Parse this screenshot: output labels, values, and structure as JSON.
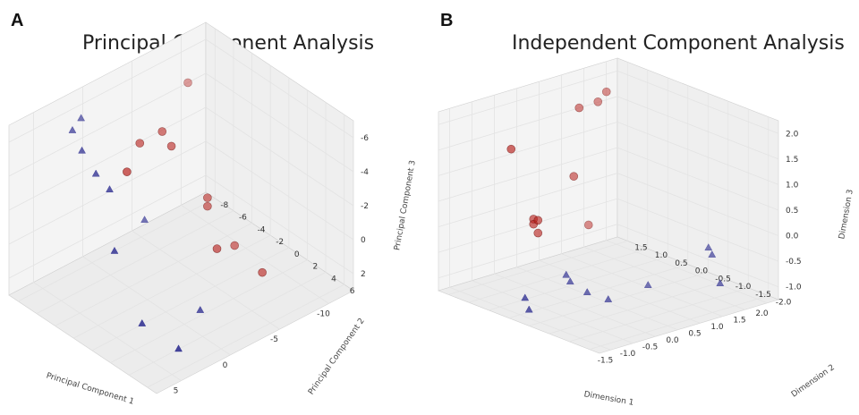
{
  "panels": [
    {
      "letter": "A",
      "title": "Principal Component Analysis"
    },
    {
      "letter": "B",
      "title": "Independent Component Analysis"
    }
  ],
  "colors": {
    "triangle": "#2b2b8f",
    "circle": "#b8201c",
    "grid": "#e3e3e3",
    "pane": "#f4f4f4"
  },
  "chart_data": [
    {
      "type": "scatter",
      "title": "Principal Component Analysis",
      "xlabel": "Principal Component 1",
      "ylabel": "Principal Component 2",
      "zlabel": "Principal Component 3",
      "xticks": [
        "5",
        "0",
        "-5",
        "-10"
      ],
      "yticks": [
        "6",
        "4",
        "2",
        "0",
        "-2",
        "-4",
        "-6",
        "-8"
      ],
      "zticks": [
        "2",
        "0",
        "-2",
        "-4",
        "-6"
      ],
      "xlim": [
        8,
        -14
      ],
      "ylim": [
        7,
        -9
      ],
      "zlim": [
        -6.5,
        3.5
      ],
      "grid": true,
      "series": [
        {
          "marker": "triangle",
          "points": [
            {
              "x": 6.0,
              "y": 0.5,
              "z": -1.0
            },
            {
              "x": 5.0,
              "y": -1.0,
              "z": 1.8
            },
            {
              "x": 5.0,
              "y": -4.0,
              "z": 3.0
            },
            {
              "x": 5.5,
              "y": -2.0,
              "z": 2.5
            },
            {
              "x": 4.0,
              "y": -6.0,
              "z": 3.2
            },
            {
              "x": 2.0,
              "y": -7.0,
              "z": 3.0
            },
            {
              "x": -2.0,
              "y": -4.0,
              "z": -3.0
            },
            {
              "x": 5.5,
              "y": 3.0,
              "z": -4.5
            },
            {
              "x": -1.0,
              "y": 3.0,
              "z": -5.5
            },
            {
              "x": 4.0,
              "y": 5.5,
              "z": -5.5
            }
          ]
        },
        {
          "marker": "circle",
          "points": [
            {
              "x": 1.0,
              "y": -3.0,
              "z": 1.0
            },
            {
              "x": -2.5,
              "y": -5.0,
              "z": 1.0
            },
            {
              "x": -5.0,
              "y": -5.0,
              "z": 1.0
            },
            {
              "x": -5.0,
              "y": -4.0,
              "z": 0.5
            },
            {
              "x": -12.0,
              "y": -9.0,
              "z": 0.5
            },
            {
              "x": -8.0,
              "y": -3.0,
              "z": -3.0
            },
            {
              "x": -8.0,
              "y": -3.0,
              "z": -3.5
            },
            {
              "x": -7.0,
              "y": -1.0,
              "z": -5.0
            },
            {
              "x": -10.0,
              "y": -2.0,
              "z": -6.0
            },
            {
              "x": -10.0,
              "y": 1.0,
              "z": -6.5
            }
          ]
        }
      ]
    },
    {
      "type": "scatter",
      "title": "Independent Component Analysis",
      "xlabel": "Dimension 1",
      "ylabel": "Dimension 2",
      "zlabel": "Dimension 3",
      "xticks": [
        "-1.5",
        "-1.0",
        "-0.5",
        "0.0",
        "0.5",
        "1.0",
        "1.5",
        "2.0"
      ],
      "yticks": [
        "-2.0",
        "-1.5",
        "-1.0",
        "-0.5",
        "0.0",
        "0.5",
        "1.0",
        "1.5"
      ],
      "zticks": [
        "-1.0",
        "-0.5",
        "0.0",
        "0.5",
        "1.0",
        "1.5",
        "2.0"
      ],
      "xlim": [
        -1.75,
        2.25
      ],
      "ylim": [
        -2.25,
        1.75
      ],
      "zlim": [
        -1.25,
        2.25
      ],
      "grid": true,
      "series": [
        {
          "marker": "circle",
          "points": [
            {
              "x": -0.8,
              "y": 1.0,
              "z": 1.5
            },
            {
              "x": 0.9,
              "y": 1.2,
              "z": 1.8
            },
            {
              "x": 1.6,
              "y": 1.3,
              "z": 1.9
            },
            {
              "x": 1.5,
              "y": 1.4,
              "z": 1.7
            },
            {
              "x": 0.6,
              "y": 1.0,
              "z": 0.6
            },
            {
              "x": -0.3,
              "y": 1.0,
              "z": 0.0
            },
            {
              "x": -0.3,
              "y": 1.0,
              "z": -0.1
            },
            {
              "x": -0.2,
              "y": 1.0,
              "z": -0.3
            },
            {
              "x": 1.2,
              "y": 1.3,
              "z": -0.6
            },
            {
              "x": -0.2,
              "y": 1.0,
              "z": -0.05
            }
          ]
        },
        {
          "marker": "triangle",
          "points": [
            {
              "x": -1.3,
              "y": 0.1,
              "z": -1.0
            },
            {
              "x": -1.3,
              "y": 0.0,
              "z": -1.2
            },
            {
              "x": -0.2,
              "y": 0.3,
              "z": -0.9
            },
            {
              "x": -0.2,
              "y": 0.2,
              "z": -1.0
            },
            {
              "x": 0.0,
              "y": 0.0,
              "z": -1.2
            },
            {
              "x": 0.2,
              "y": -0.3,
              "z": -1.3
            },
            {
              "x": 1.0,
              "y": -0.4,
              "z": -1.2
            },
            {
              "x": 1.8,
              "y": -1.3,
              "z": -1.1
            },
            {
              "x": 1.8,
              "y": -1.1,
              "z": -0.6
            },
            {
              "x": 1.9,
              "y": -0.9,
              "z": -0.55
            }
          ]
        }
      ]
    }
  ]
}
